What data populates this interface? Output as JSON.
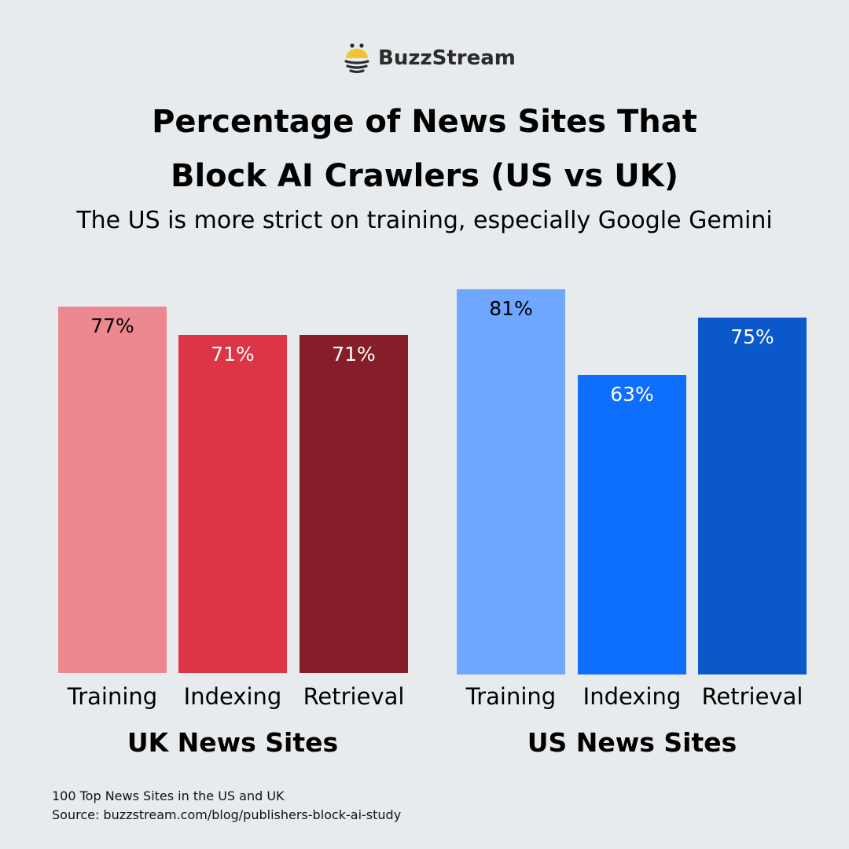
{
  "brand": {
    "name": "BuzzStream",
    "icon": "bee-logo-icon",
    "colors": {
      "yellow": "#f4c430",
      "dark": "#2b2b2b"
    }
  },
  "title_line1": "Percentage of News Sites That",
  "title_line2": "Block AI Crawlers (US vs UK)",
  "subtitle": "The US is more strict on training, especially Google Gemini",
  "groups": [
    {
      "label": "UK News Sites",
      "bars": [
        {
          "category": "Training",
          "value": 77,
          "label": "77%",
          "color": "#eb8890",
          "text_color": "#000000"
        },
        {
          "category": "Indexing",
          "value": 71,
          "label": "71%",
          "color": "#dc3545",
          "text_color": "#ffffff"
        },
        {
          "category": "Retrieval",
          "value": 71,
          "label": "71%",
          "color": "#861e2a",
          "text_color": "#ffffff"
        }
      ]
    },
    {
      "label": "US News Sites",
      "bars": [
        {
          "category": "Training",
          "value": 81,
          "label": "81%",
          "color": "#6ea7fd",
          "text_color": "#000000"
        },
        {
          "category": "Indexing",
          "value": 63,
          "label": "63%",
          "color": "#0e6efd",
          "text_color": "#ffffff"
        },
        {
          "category": "Retrieval",
          "value": 75,
          "label": "75%",
          "color": "#0b58ca",
          "text_color": "#ffffff"
        }
      ]
    }
  ],
  "footnote_line1": "100 Top News Sites in the US and UK",
  "footnote_line2": "Source: buzzstream.com/blog/publishers-block-ai-study",
  "chart_data": {
    "type": "bar",
    "title": "Percentage of News Sites That Block AI Crawlers (US vs UK)",
    "subtitle": "The US is more strict on training, especially Google Gemini",
    "categories": [
      "Training",
      "Indexing",
      "Retrieval"
    ],
    "series": [
      {
        "name": "UK News Sites",
        "values": [
          77,
          71,
          71
        ],
        "colors": [
          "#eb8890",
          "#dc3545",
          "#861e2a"
        ]
      },
      {
        "name": "US News Sites",
        "values": [
          81,
          63,
          75
        ],
        "colors": [
          "#6ea7fd",
          "#0e6efd",
          "#0b58ca"
        ]
      }
    ],
    "xlabel": "",
    "ylabel": "",
    "value_format": "percent",
    "ylim": [
      0,
      100
    ],
    "grid": false,
    "legend": "none (group labels below bars)",
    "notes": [
      "100 Top News Sites in the US and UK",
      "Source: buzzstream.com/blog/publishers-block-ai-study"
    ]
  }
}
